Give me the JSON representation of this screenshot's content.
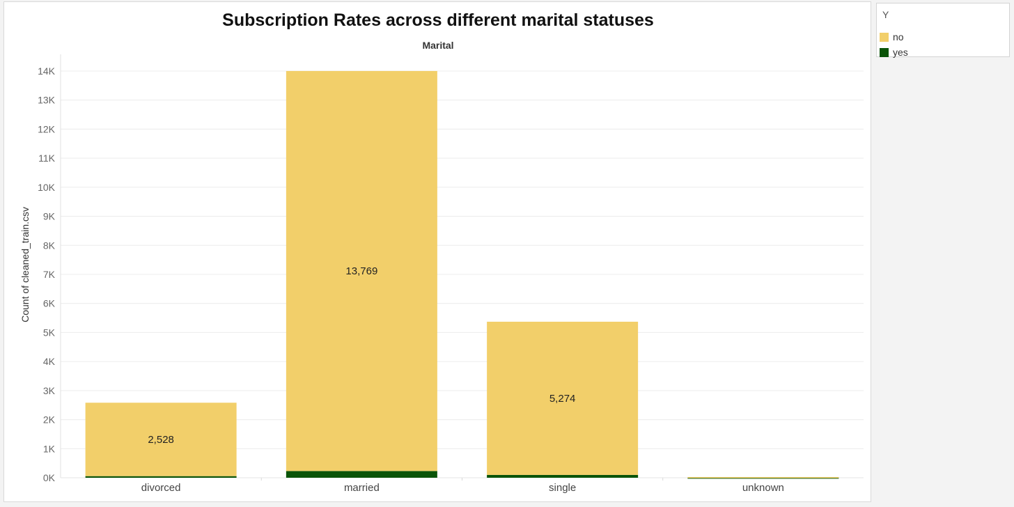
{
  "legend": {
    "title": "Y",
    "items": [
      {
        "label": "no",
        "color": "#f2cf6a"
      },
      {
        "label": "yes",
        "color": "#0a5408"
      }
    ]
  },
  "chart_data": {
    "type": "bar",
    "stacked": true,
    "title": "Subscription Rates across different marital statuses",
    "column_header": "Marital",
    "ylabel": "Count of cleaned_train.csv",
    "xlabel": "",
    "categories": [
      "divorced",
      "married",
      "single",
      "unknown"
    ],
    "series": [
      {
        "name": "no",
        "color": "#f2cf6a",
        "values": [
          2528,
          13769,
          5274,
          22
        ],
        "labels": [
          "2,528",
          "13,769",
          "5,274",
          ""
        ]
      },
      {
        "name": "yes",
        "color": "#0a5408",
        "values": [
          55,
          232,
          97,
          3
        ],
        "labels": [
          "",
          "",
          "",
          ""
        ]
      }
    ],
    "ylim": [
      -250,
      14400
    ],
    "yticks": [
      0,
      1000,
      2000,
      3000,
      4000,
      5000,
      6000,
      7000,
      8000,
      9000,
      10000,
      11000,
      12000,
      13000,
      14000
    ],
    "ytick_labels": [
      "0K",
      "1K",
      "2K",
      "3K",
      "4K",
      "5K",
      "6K",
      "7K",
      "8K",
      "9K",
      "10K",
      "11K",
      "12K",
      "13K",
      "14K"
    ],
    "grid": true,
    "legend_position": "right"
  }
}
